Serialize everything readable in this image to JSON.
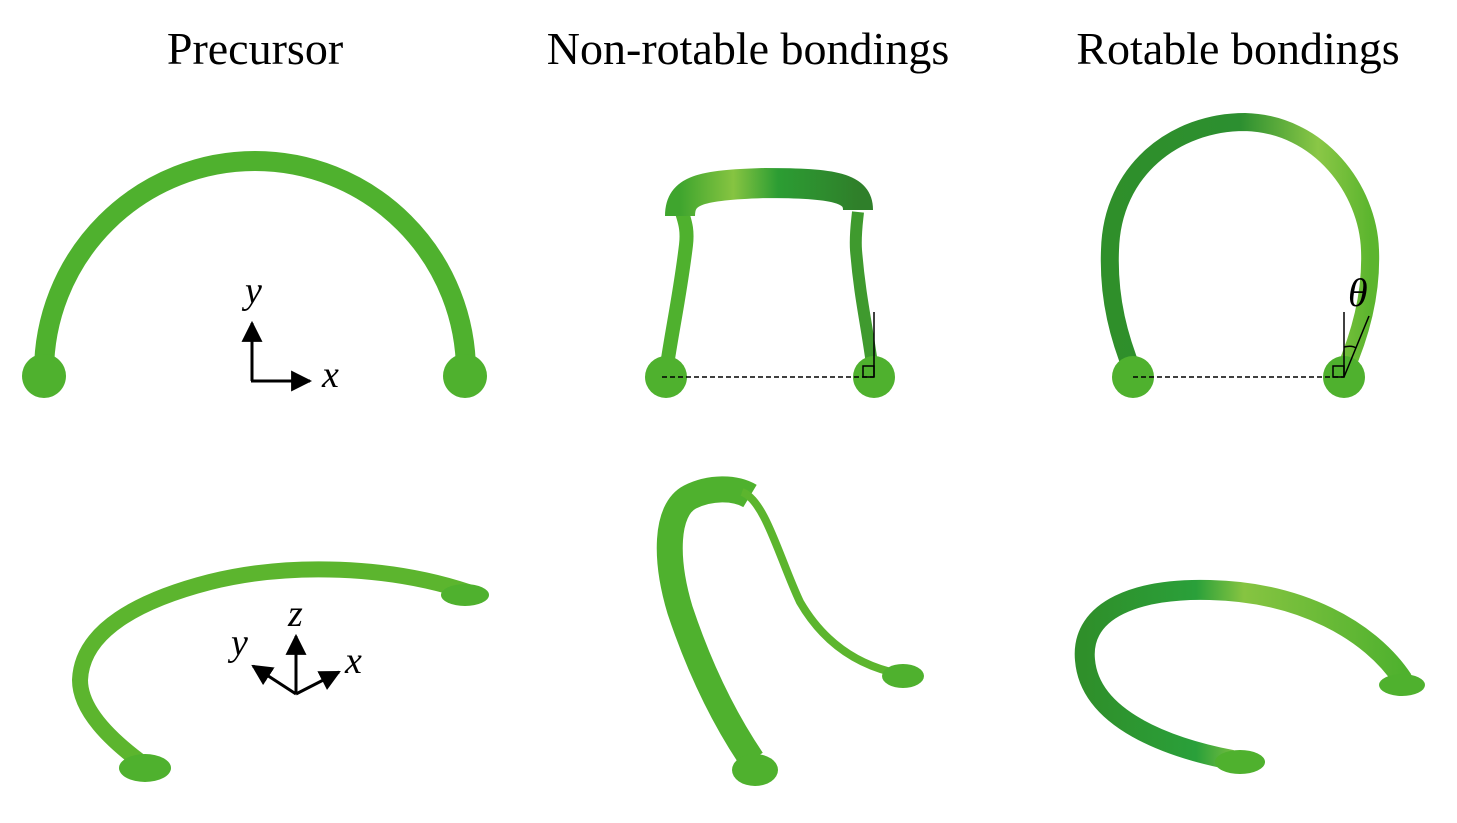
{
  "titles": {
    "precursor": "Precursor",
    "non_rotable": "Non-rotable bondings",
    "rotable": "Rotable bondings"
  },
  "axes_2d": {
    "vertical": "y",
    "horizontal": "x"
  },
  "axes_3d": {
    "z": "z",
    "y": "y",
    "x": "x"
  },
  "angle_label": "θ",
  "colors": {
    "ribbon": "#4fb12e",
    "ribbon_dark": "#2f8f2a",
    "ribbon_light": "#86c441",
    "ribbon_edge": "#3a8f25",
    "pad": "#4fb12e",
    "line": "#000000"
  }
}
